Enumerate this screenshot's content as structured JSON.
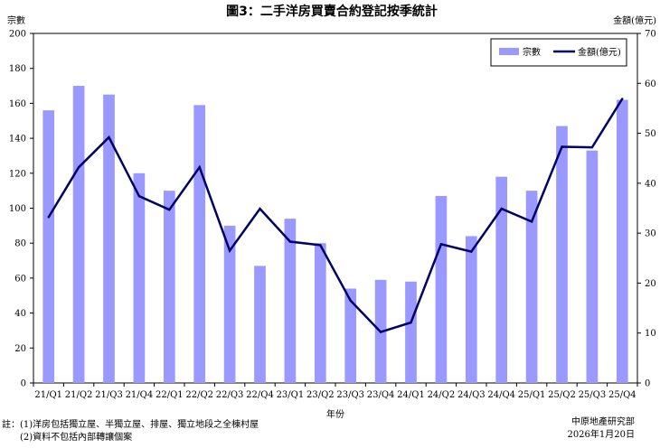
{
  "chart_data": {
    "type": "bar+line",
    "title": "圖3：二手洋房買賣合約登記按季統計",
    "xlabel": "年份",
    "ylabel_left": "宗數",
    "ylabel_right": "金額(億元)",
    "categories": [
      "21/Q1",
      "21/Q2",
      "21/Q3",
      "21/Q4",
      "22/Q1",
      "22/Q2",
      "22/Q3",
      "22/Q4",
      "23/Q1",
      "23/Q2",
      "23/Q3",
      "23/Q4",
      "24/Q1",
      "24/Q2",
      "24/Q3",
      "24/Q4",
      "25/Q1",
      "25/Q2",
      "25/Q3",
      "25/Q4"
    ],
    "series": [
      {
        "name": "宗數",
        "type": "bar",
        "axis": "left",
        "color": "#9999ff",
        "values": [
          156,
          170,
          165,
          120,
          110,
          159,
          90,
          67,
          94,
          80,
          54,
          59,
          58,
          107,
          84,
          118,
          110,
          147,
          133,
          162
        ]
      },
      {
        "name": "金額(億元)",
        "type": "line",
        "axis": "right",
        "color": "#000066",
        "values": [
          33.2,
          43.2,
          49.2,
          37.4,
          34.7,
          43.2,
          26.5,
          34.9,
          28.3,
          27.6,
          16.5,
          10.2,
          12.1,
          27.8,
          26.3,
          34.9,
          32.3,
          47.3,
          47.2,
          56.9
        ]
      }
    ],
    "ylim_left": [
      0,
      200
    ],
    "yticks_left": [
      0,
      20,
      40,
      60,
      80,
      100,
      120,
      140,
      160,
      180,
      200
    ],
    "ylim_right": [
      0,
      70
    ],
    "yticks_right": [
      0,
      10,
      20,
      30,
      40,
      50,
      60,
      70
    ],
    "legend": {
      "position": "top-right",
      "entries": [
        "宗數",
        "金額(億元)"
      ]
    },
    "grid": false
  },
  "notes": {
    "line1": "註：(1)洋房包括獨立屋、半獨立屋、排屋、獨立地段之全棟村屋",
    "line2": "　　(2)資料不包括內部轉讓個案"
  },
  "source": {
    "org": "中原地產研究部",
    "date": "2026年1月20日"
  }
}
